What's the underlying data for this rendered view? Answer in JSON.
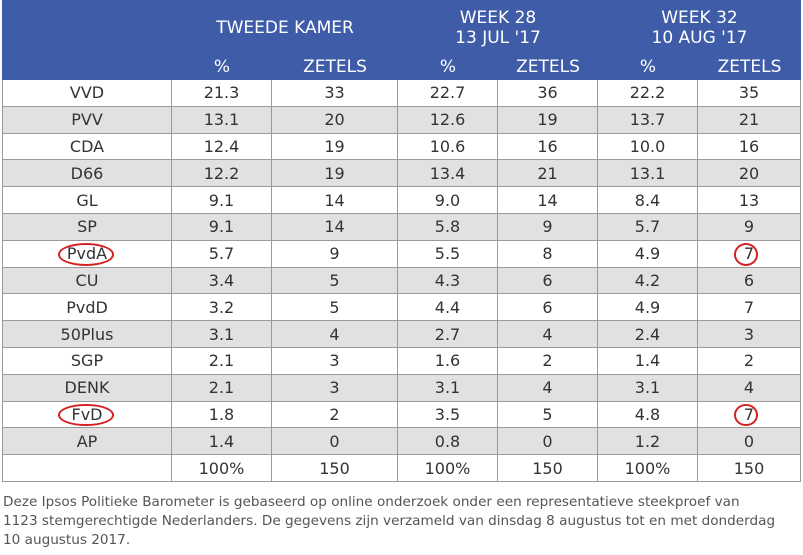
{
  "header": {
    "groups": [
      {
        "lines": [
          "TWEEDE KAMER"
        ]
      },
      {
        "lines": [
          "WEEK 28",
          "13 JUL '17"
        ]
      },
      {
        "lines": [
          "WEEK 32",
          "10 AUG '17"
        ]
      }
    ],
    "columns": [
      "%",
      "ZETELS",
      "%",
      "ZETELS",
      "%",
      "ZETELS"
    ]
  },
  "table": {
    "rows": [
      [
        "VVD",
        "21.3",
        "33",
        "22.7",
        "36",
        "22.2",
        "35"
      ],
      [
        "PVV",
        "13.1",
        "20",
        "12.6",
        "19",
        "13.7",
        "21"
      ],
      [
        "CDA",
        "12.4",
        "19",
        "10.6",
        "16",
        "10.0",
        "16"
      ],
      [
        "D66",
        "12.2",
        "19",
        "13.4",
        "21",
        "13.1",
        "20"
      ],
      [
        "GL",
        "9.1",
        "14",
        "9.0",
        "14",
        "8.4",
        "13"
      ],
      [
        "SP",
        "9.1",
        "14",
        "5.8",
        "9",
        "5.7",
        "9"
      ],
      [
        "PvdA",
        "5.7",
        "9",
        "5.5",
        "8",
        "4.9",
        "7"
      ],
      [
        "CU",
        "3.4",
        "5",
        "4.3",
        "6",
        "4.2",
        "6"
      ],
      [
        "PvdD",
        "3.2",
        "5",
        "4.4",
        "6",
        "4.9",
        "7"
      ],
      [
        "50Plus",
        "3.1",
        "4",
        "2.7",
        "4",
        "2.4",
        "3"
      ],
      [
        "SGP",
        "2.1",
        "3",
        "1.6",
        "2",
        "1.4",
        "2"
      ],
      [
        "DENK",
        "2.1",
        "3",
        "3.1",
        "4",
        "3.1",
        "4"
      ],
      [
        "FvD",
        "1.8",
        "2",
        "3.5",
        "5",
        "4.8",
        "7"
      ],
      [
        "AP",
        "1.4",
        "0",
        "0.8",
        "0",
        "1.2",
        "0"
      ]
    ],
    "totals": [
      "100%",
      "150",
      "100%",
      "150",
      "100%",
      "150"
    ]
  },
  "footer": {
    "lines": [
      "Deze Ipsos Politieke Barometer is gebaseerd op online onderzoek onder een representatieve steekproef van",
      "1123 stemgerechtigde Nederlanders. De gegevens zijn verzameld van dinsdag 8 augustus tot en met donderdag",
      "10 augustus 2017."
    ]
  }
}
